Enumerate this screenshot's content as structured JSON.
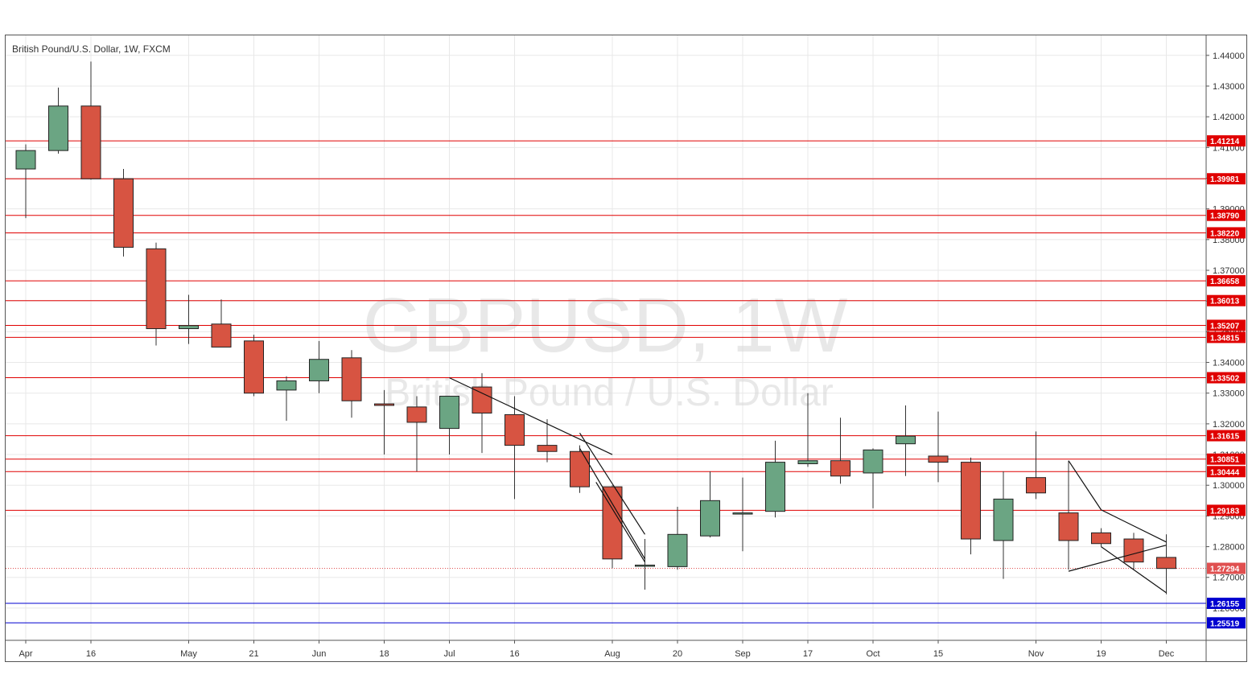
{
  "chart_data": {
    "type": "candlestick",
    "title": "British Pound/U.S. Dollar, 1W, FXCM",
    "watermark_symbol": "GBPUSD, 1W",
    "watermark_name": "British Pound / U.S. Dollar",
    "ylim": [
      1.2495,
      1.4465
    ],
    "yticks": [
      "1.44000",
      "1.43000",
      "1.42000",
      "1.41000",
      "1.40000",
      "1.39000",
      "1.38000",
      "1.37000",
      "1.36000",
      "1.35000",
      "1.34000",
      "1.33000",
      "1.32000",
      "1.31000",
      "1.30000",
      "1.29000",
      "1.28000",
      "1.27000",
      "1.26000"
    ],
    "ytick_values": [
      1.44,
      1.43,
      1.42,
      1.41,
      1.4,
      1.39,
      1.38,
      1.37,
      1.36,
      1.35,
      1.34,
      1.33,
      1.32,
      1.31,
      1.3,
      1.29,
      1.28,
      1.27,
      1.26
    ],
    "xtick_labels": [
      {
        "index": 0,
        "label": "Apr"
      },
      {
        "index": 2,
        "label": "16"
      },
      {
        "index": 5,
        "label": "May"
      },
      {
        "index": 7,
        "label": "21"
      },
      {
        "index": 9,
        "label": "Jun"
      },
      {
        "index": 11,
        "label": "18"
      },
      {
        "index": 13,
        "label": "Jul"
      },
      {
        "index": 15,
        "label": "16"
      },
      {
        "index": 18,
        "label": "Aug"
      },
      {
        "index": 20,
        "label": "20"
      },
      {
        "index": 22,
        "label": "Sep"
      },
      {
        "index": 24,
        "label": "17"
      },
      {
        "index": 26,
        "label": "Oct"
      },
      {
        "index": 28,
        "label": "15"
      },
      {
        "index": 31,
        "label": "Nov"
      },
      {
        "index": 33,
        "label": "19"
      },
      {
        "index": 35,
        "label": "Dec"
      }
    ],
    "candles": [
      {
        "o": 1.403,
        "h": 1.411,
        "l": 1.387,
        "c": 1.409
      },
      {
        "o": 1.409,
        "h": 1.4295,
        "l": 1.408,
        "c": 1.4235
      },
      {
        "o": 1.4235,
        "h": 1.438,
        "l": 1.3995,
        "c": 1.3998
      },
      {
        "o": 1.3998,
        "h": 1.403,
        "l": 1.3745,
        "c": 1.3775
      },
      {
        "o": 1.377,
        "h": 1.379,
        "l": 1.3455,
        "c": 1.351
      },
      {
        "o": 1.351,
        "h": 1.362,
        "l": 1.346,
        "c": 1.352
      },
      {
        "o": 1.3525,
        "h": 1.3605,
        "l": 1.345,
        "c": 1.345
      },
      {
        "o": 1.347,
        "h": 1.349,
        "l": 1.329,
        "c": 1.33
      },
      {
        "o": 1.331,
        "h": 1.3355,
        "l": 1.321,
        "c": 1.334
      },
      {
        "o": 1.334,
        "h": 1.347,
        "l": 1.33,
        "c": 1.341
      },
      {
        "o": 1.3415,
        "h": 1.344,
        "l": 1.322,
        "c": 1.3275
      },
      {
        "o": 1.3265,
        "h": 1.331,
        "l": 1.31,
        "c": 1.326
      },
      {
        "o": 1.3255,
        "h": 1.329,
        "l": 1.3045,
        "c": 1.3205
      },
      {
        "o": 1.3185,
        "h": 1.329,
        "l": 1.31,
        "c": 1.329
      },
      {
        "o": 1.332,
        "h": 1.3365,
        "l": 1.3105,
        "c": 1.3235
      },
      {
        "o": 1.323,
        "h": 1.329,
        "l": 1.2955,
        "c": 1.313
      },
      {
        "o": 1.313,
        "h": 1.3215,
        "l": 1.3075,
        "c": 1.311
      },
      {
        "o": 1.311,
        "h": 1.313,
        "l": 1.2975,
        "c": 1.2995
      },
      {
        "o": 1.2995,
        "h": 1.3,
        "l": 1.273,
        "c": 1.276
      },
      {
        "o": 1.274,
        "h": 1.2825,
        "l": 1.266,
        "c": 1.274
      },
      {
        "o": 1.2735,
        "h": 1.293,
        "l": 1.2725,
        "c": 1.284
      },
      {
        "o": 1.2835,
        "h": 1.3045,
        "l": 1.283,
        "c": 1.295
      },
      {
        "o": 1.291,
        "h": 1.3025,
        "l": 1.2785,
        "c": 1.291
      },
      {
        "o": 1.2915,
        "h": 1.3145,
        "l": 1.2895,
        "c": 1.3075
      },
      {
        "o": 1.307,
        "h": 1.33,
        "l": 1.306,
        "c": 1.308
      },
      {
        "o": 1.308,
        "h": 1.322,
        "l": 1.3005,
        "c": 1.303
      },
      {
        "o": 1.304,
        "h": 1.312,
        "l": 1.2925,
        "c": 1.3115
      },
      {
        "o": 1.3135,
        "h": 1.326,
        "l": 1.303,
        "c": 1.316
      },
      {
        "o": 1.3095,
        "h": 1.324,
        "l": 1.301,
        "c": 1.3075
      },
      {
        "o": 1.3075,
        "h": 1.309,
        "l": 1.2775,
        "c": 1.2825
      },
      {
        "o": 1.282,
        "h": 1.3045,
        "l": 1.2695,
        "c": 1.2955
      },
      {
        "o": 1.3025,
        "h": 1.3175,
        "l": 1.2955,
        "c": 1.2975
      },
      {
        "o": 1.291,
        "h": 1.308,
        "l": 1.2725,
        "c": 1.282
      },
      {
        "o": 1.2845,
        "h": 1.286,
        "l": 1.28,
        "c": 1.281
      },
      {
        "o": 1.2825,
        "h": 1.2845,
        "l": 1.2725,
        "c": 1.275
      },
      {
        "o": 1.2765,
        "h": 1.284,
        "l": 1.2645,
        "c": 1.2729
      }
    ],
    "horizontal_levels": [
      {
        "value": 1.41214,
        "label": "1.41214",
        "color": "#e00000"
      },
      {
        "value": 1.39981,
        "label": "1.39981",
        "color": "#e00000"
      },
      {
        "value": 1.3879,
        "label": "1.38790",
        "color": "#e00000"
      },
      {
        "value": 1.3822,
        "label": "1.38220",
        "color": "#e00000"
      },
      {
        "value": 1.36658,
        "label": "1.36658",
        "color": "#e00000"
      },
      {
        "value": 1.36013,
        "label": "1.36013",
        "color": "#e00000"
      },
      {
        "value": 1.35207,
        "label": "1.35207",
        "color": "#e00000"
      },
      {
        "value": 1.34815,
        "label": "1.34815",
        "color": "#e00000"
      },
      {
        "value": 1.33502,
        "label": "1.33502",
        "color": "#e00000"
      },
      {
        "value": 1.31615,
        "label": "1.31615",
        "color": "#e00000"
      },
      {
        "value": 1.30851,
        "label": "1.30851",
        "color": "#e00000"
      },
      {
        "value": 1.30444,
        "label": "1.30444",
        "color": "#e00000"
      },
      {
        "value": 1.29183,
        "label": "1.29183",
        "color": "#e00000"
      },
      {
        "value": 1.26155,
        "label": "1.26155",
        "color": "#0000d0"
      },
      {
        "value": 1.25519,
        "label": "1.25519",
        "color": "#0000d0"
      }
    ],
    "current_price": {
      "value": 1.27294,
      "label": "1.27294",
      "color": "#e05050"
    },
    "trendlines": [
      {
        "x1": 13,
        "y1": 1.335,
        "x2": 18,
        "y2": 1.31
      },
      {
        "x1": 17,
        "y1": 1.317,
        "x2": 19,
        "y2": 1.284
      },
      {
        "x1": 17,
        "y1": 1.312,
        "x2": 19,
        "y2": 1.276
      },
      {
        "x1": 17.5,
        "y1": 1.301,
        "x2": 19,
        "y2": 1.275
      },
      {
        "x1": 32,
        "y1": 1.308,
        "x2": 33,
        "y2": 1.292
      },
      {
        "x1": 33,
        "y1": 1.292,
        "x2": 35,
        "y2": 1.2815
      },
      {
        "x1": 32,
        "y1": 1.272,
        "x2": 35,
        "y2": 1.2805
      },
      {
        "x1": 33,
        "y1": 1.28,
        "x2": 35,
        "y2": 1.265
      }
    ],
    "colors": {
      "up": "#6ba583",
      "down": "#d75442",
      "wick": "#333333"
    },
    "grid": true
  }
}
